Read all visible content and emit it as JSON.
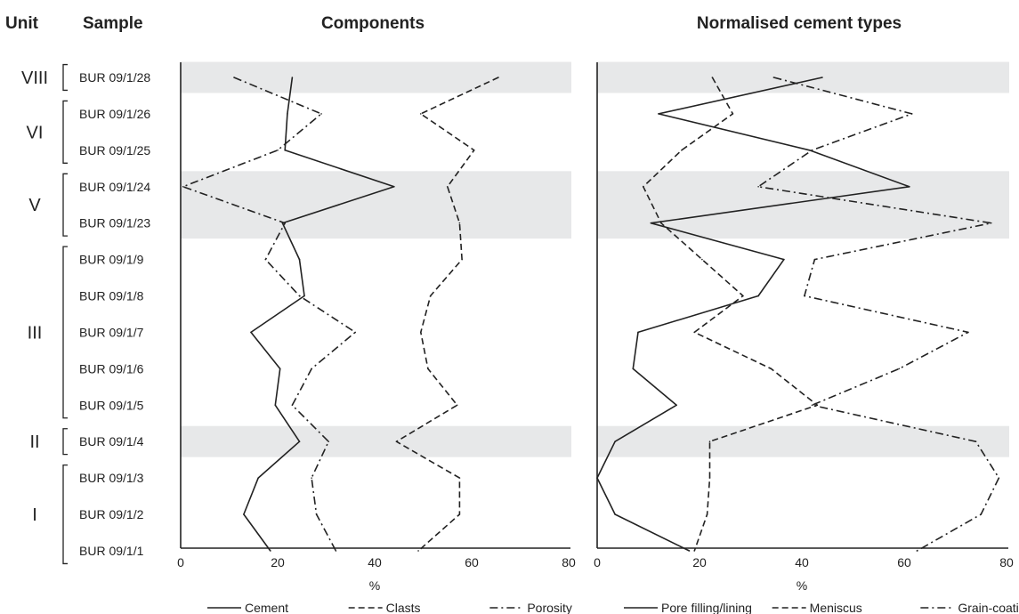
{
  "headers": {
    "unit": "Unit",
    "sample": "Sample"
  },
  "samples": [
    "BUR 09/1/28",
    "BUR 09/1/26",
    "BUR 09/1/25",
    "BUR 09/1/24",
    "BUR 09/1/23",
    "BUR 09/1/9",
    "BUR 09/1/8",
    "BUR 09/1/7",
    "BUR 09/1/6",
    "BUR 09/1/5",
    "BUR 09/1/4",
    "BUR 09/1/3",
    "BUR 09/1/2",
    "BUR 09/1/1"
  ],
  "units": [
    {
      "label": "VIII",
      "first": 0,
      "last": 0,
      "shaded": true
    },
    {
      "label": "VI",
      "first": 1,
      "last": 2,
      "shaded": false
    },
    {
      "label": "V",
      "first": 3,
      "last": 4,
      "shaded": true
    },
    {
      "label": "III",
      "first": 5,
      "last": 9,
      "shaded": false
    },
    {
      "label": "II",
      "first": 10,
      "last": 10,
      "shaded": true
    },
    {
      "label": "I",
      "first": 11,
      "last": 13,
      "shaded": false
    }
  ],
  "colors": {
    "line": "#222222",
    "shade": "#e7e8e9"
  },
  "chart_data": [
    {
      "type": "line",
      "title": "Components",
      "xlabel": "%",
      "xlim": [
        0,
        80
      ],
      "xticks": [
        "0",
        "20",
        "40",
        "60",
        "80"
      ],
      "categories": [
        "BUR 09/1/28",
        "BUR 09/1/26",
        "BUR 09/1/25",
        "BUR 09/1/24",
        "BUR 09/1/23",
        "BUR 09/1/9",
        "BUR 09/1/8",
        "BUR 09/1/7",
        "BUR 09/1/6",
        "BUR 09/1/5",
        "BUR 09/1/4",
        "BUR 09/1/3",
        "BUR 09/1/2",
        "BUR 09/1/1"
      ],
      "legend_position": "bottom",
      "series": [
        {
          "name": "Cement",
          "style": "solid",
          "values": [
            23,
            22,
            21.5,
            44,
            21,
            24.5,
            25.5,
            14.5,
            20.5,
            19.5,
            24.5,
            16,
            13,
            18.5
          ]
        },
        {
          "name": "Clasts",
          "style": "dash",
          "values": [
            65.5,
            49.5,
            60.5,
            55,
            57.5,
            58,
            51.5,
            49.5,
            51,
            57,
            44.5,
            57.5,
            57.5,
            49
          ]
        },
        {
          "name": "Porosity",
          "style": "dashdot",
          "values": [
            11,
            29,
            20,
            0.5,
            21.5,
            17.5,
            24.5,
            36,
            27,
            23,
            30.5,
            27,
            28,
            32
          ]
        }
      ]
    },
    {
      "type": "line",
      "title": "Normalised cement types",
      "xlabel": "%",
      "xlim": [
        0,
        80
      ],
      "xticks": [
        "0",
        "20",
        "40",
        "60",
        "80"
      ],
      "categories": [
        "BUR 09/1/28",
        "BUR 09/1/26",
        "BUR 09/1/25",
        "BUR 09/1/24",
        "BUR 09/1/23",
        "BUR 09/1/9",
        "BUR 09/1/8",
        "BUR 09/1/7",
        "BUR 09/1/6",
        "BUR 09/1/5",
        "BUR 09/1/4",
        "BUR 09/1/3",
        "BUR 09/1/2",
        "BUR 09/1/1"
      ],
      "legend_position": "bottom",
      "series": [
        {
          "name": "Pore filling/lining",
          "style": "solid",
          "values": [
            44,
            12,
            41.5,
            61,
            10.5,
            36.5,
            31.5,
            8,
            7,
            15.5,
            3.5,
            0,
            3.5,
            18
          ]
        },
        {
          "name": "Meniscus",
          "style": "dash",
          "values": [
            22.5,
            26.5,
            16.5,
            9,
            12.5,
            20.5,
            28.5,
            19,
            34,
            43,
            22,
            22,
            21.5,
            19
          ]
        },
        {
          "name": "Grain-coating",
          "style": "dashdot",
          "values": [
            34.5,
            61.5,
            42,
            31.5,
            77,
            42.5,
            40.5,
            72.5,
            59,
            42,
            74,
            78.5,
            75,
            62.5
          ]
        }
      ]
    }
  ]
}
